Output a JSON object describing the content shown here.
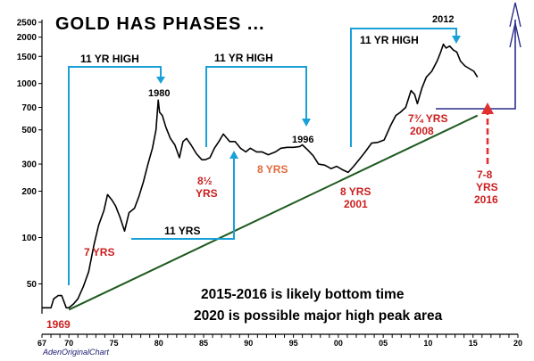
{
  "chart_data": {
    "type": "line",
    "title": "GOLD HAS PHASES ...",
    "source": "AdenOriginalChart",
    "y_scale": "log",
    "ylim": [
      32,
      2600
    ],
    "xlim": [
      1967,
      2020
    ],
    "y_ticks": [
      {
        "value": 2500,
        "label": "2500"
      },
      {
        "value": 2000,
        "label": "2000"
      },
      {
        "value": 1500,
        "label": "1500"
      },
      {
        "value": 1000,
        "label": "1000"
      },
      {
        "value": 700,
        "label": "700"
      },
      {
        "value": 500,
        "label": "500"
      },
      {
        "value": 300,
        "label": "300"
      },
      {
        "value": 200,
        "label": "200"
      },
      {
        "value": 100,
        "label": "100"
      },
      {
        "value": 50,
        "label": "50"
      }
    ],
    "x_ticks": [
      {
        "value": 1967,
        "label": "67"
      },
      {
        "value": 1970,
        "label": "70"
      },
      {
        "value": 1975,
        "label": "75"
      },
      {
        "value": 1980,
        "label": "80"
      },
      {
        "value": 1985,
        "label": "85"
      },
      {
        "value": 1990,
        "label": "90"
      },
      {
        "value": 1995,
        "label": "95"
      },
      {
        "value": 2000,
        "label": "00"
      },
      {
        "value": 2005,
        "label": "05"
      },
      {
        "value": 2010,
        "label": "10"
      },
      {
        "value": 2015,
        "label": "15"
      },
      {
        "value": 2020,
        "label": "20"
      }
    ],
    "series": [
      {
        "color": "#000000",
        "x": [
          1967,
          1968,
          1968.3,
          1968.8,
          1969.2,
          1969.7,
          1970.0,
          1970.5,
          1971.0,
          1971.6,
          1972.2,
          1972.8,
          1973.3,
          1973.9,
          1974.3,
          1974.8,
          1975.2,
          1975.7,
          1976.2,
          1976.7,
          1977.3,
          1977.8,
          1978.3,
          1978.8,
          1979.3,
          1979.7,
          1979.95,
          1980.1,
          1980.4,
          1980.8,
          1981.3,
          1981.8,
          1982.3,
          1982.7,
          1983.1,
          1983.6,
          1984.2,
          1984.8,
          1985.2,
          1985.7,
          1986.2,
          1986.7,
          1987.2,
          1987.9,
          1988.5,
          1989.1,
          1989.7,
          1990.2,
          1990.9,
          1991.5,
          1992.2,
          1993.0,
          1993.6,
          1994.3,
          1995.0,
          1995.7,
          1996.0,
          1996.6,
          1997.2,
          1997.8,
          1998.5,
          1999.2,
          1999.8,
          2000.5,
          2001.1,
          2001.7,
          2002.3,
          2003.0,
          2003.7,
          2004.4,
          2005.1,
          2005.8,
          2006.4,
          2006.9,
          2007.5,
          2008.1,
          2008.5,
          2008.8,
          2009.3,
          2009.8,
          2010.4,
          2011.0,
          2011.4,
          2011.7,
          2012.0,
          2012.4,
          2012.8,
          2013.2,
          2013.6,
          2014.1,
          2014.6,
          2015.1,
          2015.5
        ],
        "y": [
          35,
          35,
          40,
          42,
          42,
          35,
          35,
          37,
          40,
          48,
          60,
          90,
          120,
          150,
          190,
          175,
          160,
          135,
          110,
          145,
          155,
          185,
          230,
          300,
          380,
          500,
          780,
          650,
          620,
          520,
          440,
          400,
          330,
          420,
          440,
          400,
          350,
          320,
          320,
          330,
          380,
          420,
          470,
          420,
          420,
          380,
          360,
          380,
          360,
          360,
          345,
          360,
          380,
          385,
          385,
          390,
          400,
          370,
          340,
          300,
          295,
          280,
          290,
          275,
          265,
          290,
          320,
          360,
          410,
          415,
          430,
          530,
          620,
          650,
          700,
          900,
          850,
          740,
          930,
          1100,
          1200,
          1400,
          1600,
          1800,
          1700,
          1750,
          1650,
          1600,
          1400,
          1300,
          1250,
          1200,
          1100
        ]
      }
    ],
    "trendline": {
      "color": "#1e5a1e",
      "from": {
        "x": 1970,
        "y": 34
      },
      "to": {
        "x": 2015.5,
        "y": 620
      }
    },
    "annotations": {
      "peak_labels": [
        {
          "text": "1980",
          "x": 1980
        },
        {
          "text": "1996",
          "x": 1996
        },
        {
          "text": "2012",
          "x": 2012
        }
      ],
      "highs": [
        {
          "text": "11 YR HIGH"
        },
        {
          "text": "11 YR HIGH"
        },
        {
          "text": "11 YR HIGH"
        }
      ],
      "lows": {
        "y1969": "1969",
        "y7": "7 YRS",
        "y85a": "8½",
        "y85b": "YRS",
        "y8orange": "8 YRS",
        "y2001a": "8 YRS",
        "y2001b": "2001",
        "y2008a": "7¾ YRS",
        "y2008b": "2008",
        "y2016a": "7-8",
        "y2016b": "YRS",
        "y2016c": "2016",
        "mid11": "11 YRS"
      },
      "notes": [
        "2015-2016 is likely bottom time",
        "2020 is possible major high peak area"
      ]
    },
    "grid": false,
    "legend": "none"
  },
  "colors": {
    "bracket": "#1aa0d8",
    "trend": "#1e5a1e",
    "forecast_red": "#e03030",
    "forecast_navy": "#2c2c8a",
    "price_line": "#000000"
  }
}
